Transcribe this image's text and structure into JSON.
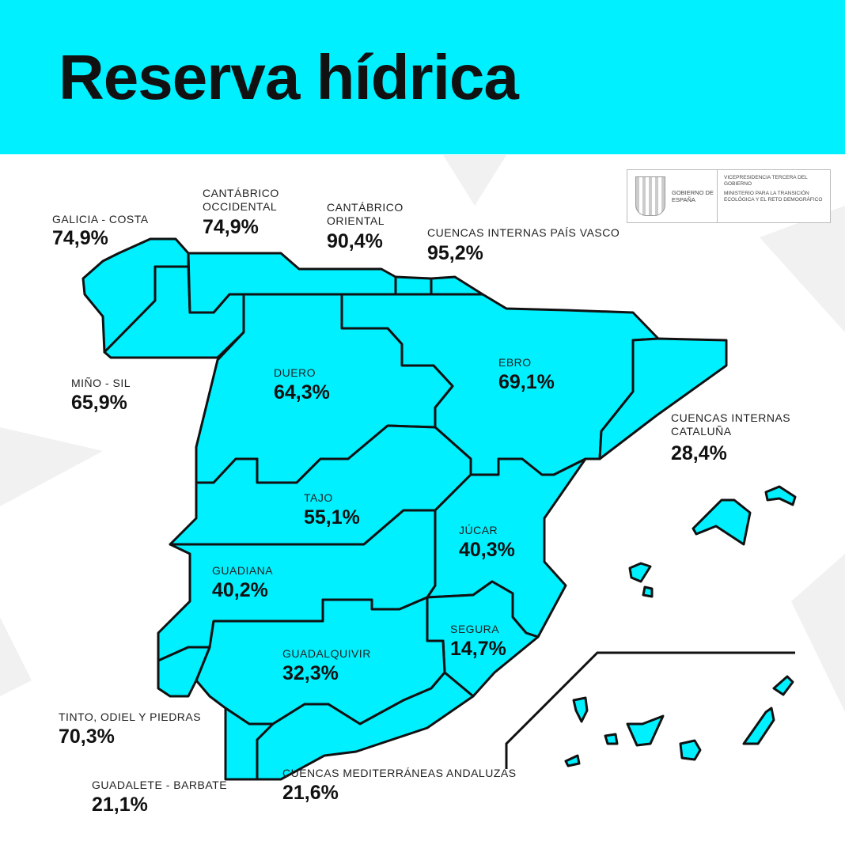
{
  "title": "Reserva hídrica",
  "logo": {
    "gov": "GOBIERNO DE ESPAÑA",
    "vice": "VICEPRESIDENCIA TERCERA DEL GOBIERNO",
    "ministry": "MINISTERIO PARA LA TRANSICIÓN ECOLÓGICA Y EL RETO DEMOGRÁFICO"
  },
  "colors": {
    "banner": "#00f0ff",
    "region": "#00f0ff",
    "border": "#111111"
  },
  "regions": [
    {
      "name": "GALICIA - COSTA",
      "value": "74,9%"
    },
    {
      "name": "CANTÁBRICO OCCIDENTAL",
      "value": "74,9%"
    },
    {
      "name": "CANTÁBRICO ORIENTAL",
      "value": "90,4%"
    },
    {
      "name": "CUENCAS INTERNAS PAÍS VASCO",
      "value": "95,2%"
    },
    {
      "name": "MIÑO - SIL",
      "value": "65,9%"
    },
    {
      "name": "DUERO",
      "value": "64,3%"
    },
    {
      "name": "EBRO",
      "value": "69,1%"
    },
    {
      "name": "CUENCAS INTERNAS CATALUÑA",
      "value": "28,4%"
    },
    {
      "name": "TAJO",
      "value": "55,1%"
    },
    {
      "name": "JÚCAR",
      "value": "40,3%"
    },
    {
      "name": "GUADIANA",
      "value": "40,2%"
    },
    {
      "name": "SEGURA",
      "value": "14,7%"
    },
    {
      "name": "GUADALQUIVIR",
      "value": "32,3%"
    },
    {
      "name": "TINTO, ODIEL Y PIEDRAS",
      "value": "70,3%"
    },
    {
      "name": "GUADALETE - BARBATE",
      "value": "21,1%"
    },
    {
      "name": "CUENCAS MEDITERRÁNEAS ANDALUZAS",
      "value": "21,6%"
    }
  ]
}
